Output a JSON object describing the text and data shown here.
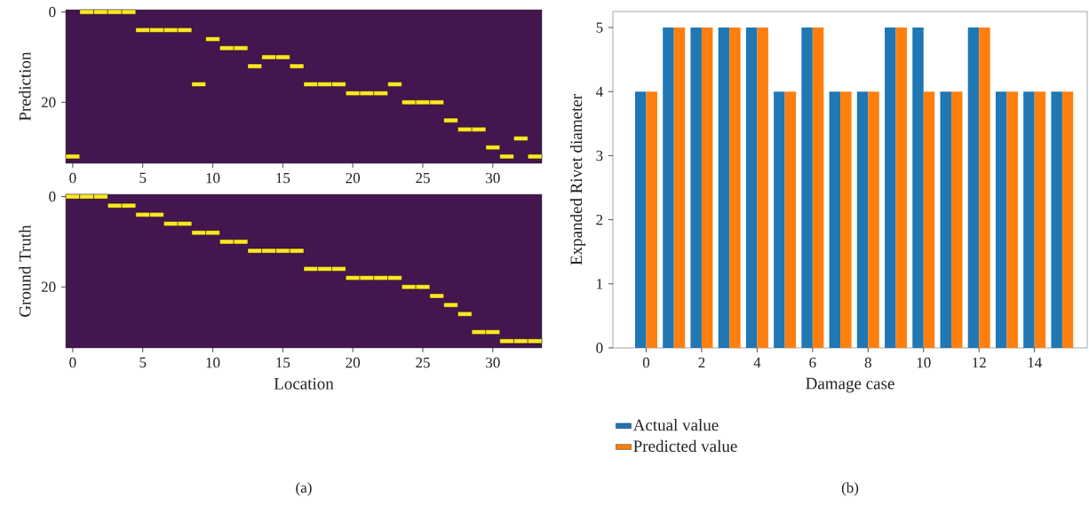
{
  "chart_data": [
    {
      "type": "scatter",
      "ylabel": "Prediction",
      "color": "#fde725",
      "marker": "square",
      "xlim": [
        -0.5,
        33.5
      ],
      "ylim": [
        33.5,
        -0.5
      ],
      "xticks": [
        0,
        5,
        10,
        15,
        20,
        25,
        30
      ],
      "yticks": [
        0,
        20
      ],
      "x": [
        0,
        1,
        2,
        3,
        4,
        5,
        6,
        7,
        8,
        9,
        10,
        11,
        12,
        13,
        14,
        15,
        16,
        17,
        18,
        19,
        20,
        21,
        22,
        23,
        24,
        25,
        26,
        27,
        28,
        29,
        30,
        31,
        32,
        33
      ],
      "values": [
        32,
        0,
        0,
        0,
        0,
        4,
        4,
        4,
        4,
        16,
        6,
        8,
        8,
        12,
        10,
        10,
        12,
        16,
        16,
        16,
        18,
        18,
        18,
        16,
        20,
        20,
        20,
        24,
        26,
        26,
        30,
        32,
        28,
        32
      ]
    },
    {
      "type": "scatter",
      "ylabel": "Ground Truth",
      "xlabel": "Location",
      "color": "#fde725",
      "marker": "square",
      "xlim": [
        -0.5,
        33.5
      ],
      "ylim": [
        33.5,
        -0.5
      ],
      "xticks": [
        0,
        5,
        10,
        15,
        20,
        25,
        30
      ],
      "yticks": [
        0,
        20
      ],
      "annotations": [
        "(a)"
      ],
      "x": [
        0,
        1,
        2,
        3,
        4,
        5,
        6,
        7,
        8,
        9,
        10,
        11,
        12,
        13,
        14,
        15,
        16,
        17,
        18,
        19,
        20,
        21,
        22,
        23,
        24,
        25,
        26,
        27,
        28,
        29,
        30,
        31,
        32,
        33
      ],
      "values": [
        0,
        0,
        0,
        2,
        2,
        4,
        4,
        6,
        6,
        8,
        8,
        10,
        10,
        12,
        12,
        12,
        12,
        16,
        16,
        16,
        18,
        18,
        18,
        18,
        20,
        20,
        22,
        24,
        26,
        30,
        30,
        32,
        32,
        32
      ]
    },
    {
      "type": "bar",
      "xlabel": "Damage case",
      "ylabel": "Expanded Rivet diameter",
      "xlim": [
        -1.2,
        15.9
      ],
      "ylim": [
        0,
        5.25
      ],
      "xticks": [
        0,
        2,
        4,
        6,
        8,
        10,
        12,
        14
      ],
      "yticks": [
        0,
        1,
        2,
        3,
        4,
        5
      ],
      "legend": "bottom",
      "annotations": [
        "(b)"
      ],
      "x": [
        0,
        1,
        2,
        3,
        4,
        5,
        6,
        7,
        8,
        9,
        10,
        11,
        12,
        13,
        14,
        15
      ],
      "series": [
        {
          "name": "Actual value",
          "color": "#1f77b4",
          "values": [
            4,
            5,
            5,
            5,
            5,
            4,
            5,
            4,
            4,
            5,
            5,
            4,
            5,
            4,
            4,
            4
          ]
        },
        {
          "name": "Predicted value",
          "color": "#ff7f0e",
          "values": [
            4,
            5,
            5,
            5,
            5,
            4,
            5,
            4,
            4,
            5,
            4,
            4,
            5,
            4,
            4,
            4
          ]
        }
      ]
    }
  ]
}
